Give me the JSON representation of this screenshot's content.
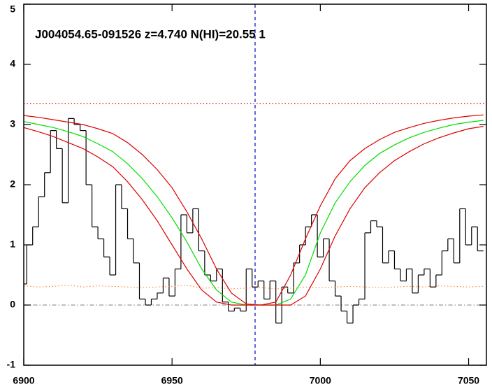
{
  "chart_data": {
    "type": "line",
    "annotation": "J004054.65-091526 z=4.740 N(HI)=20.55 1",
    "xlim": [
      6900,
      7056
    ],
    "ylim": [
      -1,
      5
    ],
    "xticks": [
      6900,
      6950,
      7000,
      7050
    ],
    "yticks": [
      -1,
      0,
      1,
      2,
      3,
      4,
      5
    ],
    "hlines": [
      {
        "value": 3.35,
        "color": "#dd0000",
        "style": "dotted"
      },
      {
        "value": 0,
        "color": "#999999",
        "style": "dashdot"
      }
    ],
    "vline": {
      "value": 6978,
      "color": "#0000cc",
      "style": "dashed"
    },
    "series": [
      {
        "color": "#000000",
        "step": true,
        "x": [
          6900,
          6902,
          6904,
          6906,
          6908,
          6910,
          6912,
          6914,
          6916,
          6918,
          6920,
          6922,
          6924,
          6926,
          6928,
          6930,
          6932,
          6934,
          6936,
          6938,
          6940,
          6942,
          6944,
          6946,
          6948,
          6950,
          6952,
          6954,
          6956,
          6958,
          6960,
          6962,
          6964,
          6966,
          6968,
          6970,
          6972,
          6974,
          6976,
          6978,
          6980,
          6982,
          6984,
          6986,
          6988,
          6990,
          6992,
          6994,
          6996,
          6998,
          7000,
          7002,
          7004,
          7006,
          7008,
          7010,
          7012,
          7014,
          7016,
          7018,
          7020,
          7022,
          7024,
          7026,
          7028,
          7030,
          7032,
          7034,
          7036,
          7038,
          7040,
          7042,
          7044,
          7046,
          7048,
          7050,
          7052,
          7054
        ],
        "values": [
          0.35,
          1.0,
          1.3,
          1.8,
          2.2,
          2.9,
          2.6,
          1.7,
          3.1,
          3.0,
          2.9,
          2.0,
          1.3,
          1.1,
          0.8,
          0.5,
          2.0,
          1.6,
          1.1,
          0.7,
          0.1,
          0.0,
          0.1,
          0.2,
          0.45,
          0.15,
          0.6,
          1.5,
          1.2,
          1.6,
          0.9,
          0.5,
          0.4,
          0.6,
          0.05,
          -0.1,
          -0.05,
          -0.1,
          0.6,
          0.3,
          0.4,
          0.1,
          0.4,
          -0.3,
          0.3,
          0.2,
          0.7,
          1.0,
          1.3,
          1.5,
          0.8,
          1.1,
          0.4,
          0.15,
          -0.1,
          -0.3,
          0.0,
          0.1,
          1.2,
          1.4,
          1.3,
          0.7,
          0.9,
          0.6,
          0.4,
          0.6,
          0.2,
          0.5,
          0.6,
          0.3,
          0.5,
          0.9,
          1.1,
          0.7,
          1.6,
          1.0,
          1.3,
          0.9
        ]
      },
      {
        "color": "#ff8c3a",
        "style": "dotted",
        "x": [
          6900,
          6905,
          6910,
          6915,
          6920,
          6925,
          6930,
          6935,
          6940,
          6945,
          6950,
          6955,
          6960,
          6965,
          6970,
          6975,
          6980,
          6985,
          6990,
          6995,
          7000,
          7005,
          7010,
          7015,
          7020,
          7025,
          7030,
          7035,
          7040,
          7045,
          7050,
          7055
        ],
        "values": [
          0.32,
          0.3,
          0.31,
          0.33,
          0.3,
          0.32,
          0.31,
          0.3,
          0.29,
          0.3,
          0.31,
          0.33,
          0.28,
          0.29,
          0.27,
          0.28,
          0.29,
          0.27,
          0.28,
          0.3,
          0.29,
          0.3,
          0.31,
          0.3,
          0.29,
          0.3,
          0.31,
          0.3,
          0.32,
          0.31,
          0.3,
          0.31
        ]
      },
      {
        "color": "#00dd00",
        "x": [
          6900,
          6905,
          6910,
          6915,
          6920,
          6925,
          6930,
          6935,
          6940,
          6945,
          6950,
          6955,
          6960,
          6965,
          6970,
          6975,
          6980,
          6985,
          6990,
          6995,
          7000,
          7005,
          7010,
          7015,
          7020,
          7025,
          7030,
          7035,
          7040,
          7045,
          7050,
          7055
        ],
        "values": [
          3.05,
          3.0,
          2.95,
          2.88,
          2.8,
          2.68,
          2.55,
          2.35,
          2.1,
          1.8,
          1.45,
          1.05,
          0.6,
          0.25,
          0.05,
          0.0,
          0.0,
          0.0,
          0.1,
          0.5,
          1.2,
          1.7,
          2.05,
          2.32,
          2.52,
          2.66,
          2.78,
          2.87,
          2.94,
          3.0,
          3.04,
          3.07
        ]
      },
      {
        "color": "#dd0000",
        "x": [
          6900,
          6905,
          6910,
          6915,
          6920,
          6925,
          6930,
          6935,
          6940,
          6945,
          6950,
          6955,
          6960,
          6965,
          6970,
          6975,
          6980,
          6985,
          6990,
          6995,
          7000,
          7005,
          7010,
          7015,
          7020,
          7025,
          7030,
          7035,
          7040,
          7045,
          7050,
          7055
        ],
        "values": [
          3.15,
          3.12,
          3.08,
          3.04,
          3.0,
          2.93,
          2.85,
          2.7,
          2.5,
          2.25,
          1.95,
          1.55,
          1.1,
          0.6,
          0.2,
          0.02,
          0.0,
          0.05,
          0.5,
          1.1,
          1.65,
          2.1,
          2.4,
          2.6,
          2.75,
          2.87,
          2.95,
          3.02,
          3.07,
          3.11,
          3.14,
          3.16
        ]
      },
      {
        "color": "#dd0000",
        "x": [
          6900,
          6905,
          6910,
          6915,
          6920,
          6925,
          6930,
          6935,
          6940,
          6945,
          6950,
          6955,
          6960,
          6965,
          6970,
          6975,
          6980,
          6985,
          6990,
          6995,
          7000,
          7005,
          7010,
          7015,
          7020,
          7025,
          7030,
          7035,
          7040,
          7045,
          7050,
          7055
        ],
        "values": [
          2.95,
          2.88,
          2.8,
          2.7,
          2.6,
          2.46,
          2.3,
          2.05,
          1.75,
          1.4,
          1.0,
          0.6,
          0.25,
          0.05,
          0.0,
          0.0,
          0.0,
          0.0,
          0.0,
          0.15,
          0.6,
          1.15,
          1.6,
          1.95,
          2.2,
          2.4,
          2.55,
          2.68,
          2.78,
          2.86,
          2.93,
          2.97
        ]
      }
    ]
  }
}
